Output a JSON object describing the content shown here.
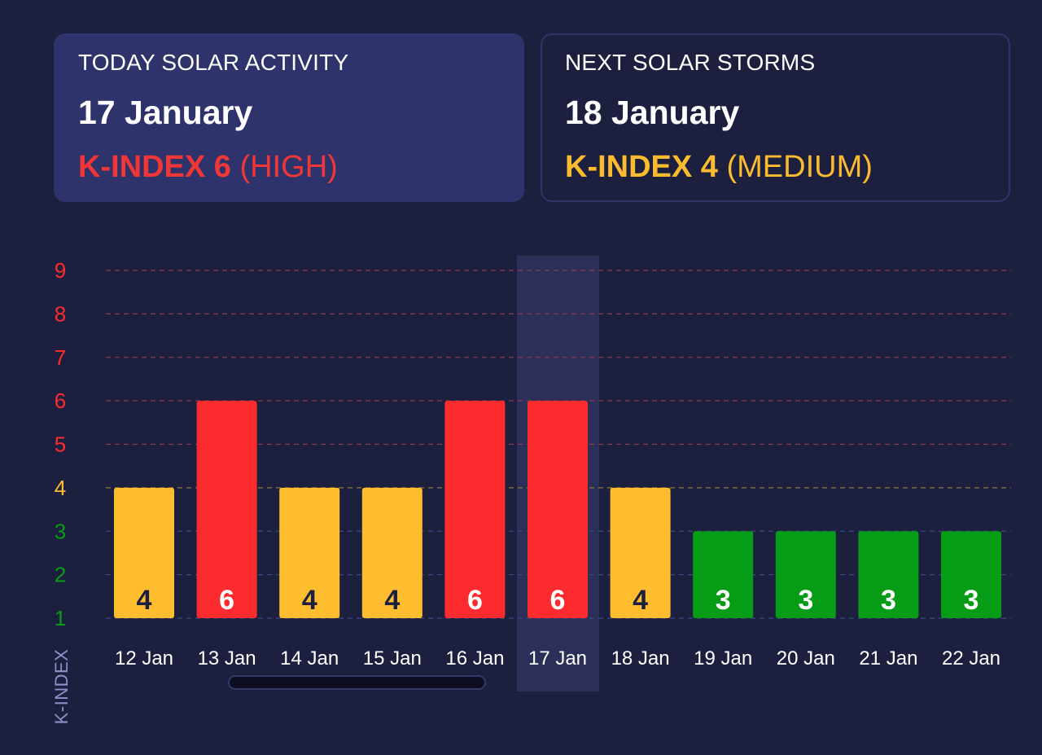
{
  "today": {
    "label": "TODAY SOLAR ACTIVITY",
    "date": "17 January",
    "kindex_strong": "K-INDEX 6",
    "kindex_level": "(HIGH)",
    "color": "#f03636"
  },
  "next": {
    "label": "NEXT SOLAR STORMS",
    "date": "18 January",
    "kindex_strong": "K-INDEX 4",
    "kindex_level": "(MEDIUM)",
    "color": "#fbbb2f"
  },
  "colors": {
    "high": "#fc2b2d",
    "medium": "#fdbd2e",
    "low": "#079c15",
    "highlight": "#2c2f57"
  },
  "chart_data": {
    "type": "bar",
    "categories": [
      "12 Jan",
      "13 Jan",
      "14 Jan",
      "15 Jan",
      "16 Jan",
      "17 Jan",
      "18 Jan",
      "19 Jan",
      "20 Jan",
      "21 Jan",
      "22 Jan"
    ],
    "values": [
      4,
      6,
      4,
      4,
      6,
      6,
      4,
      3,
      3,
      3,
      3
    ],
    "data_labels": [
      "4",
      "6",
      "4",
      "4",
      "6",
      "6",
      "4",
      "3",
      "3",
      "3",
      "3"
    ],
    "title": "",
    "xlabel": "",
    "ylabel": "K-INDEX",
    "ylim": [
      1,
      9
    ],
    "yticks": [
      "1",
      "2",
      "3",
      "4",
      "5",
      "6",
      "7",
      "8",
      "9"
    ],
    "highlighted_category": "17 Jan",
    "grid": true,
    "legend": "none"
  }
}
